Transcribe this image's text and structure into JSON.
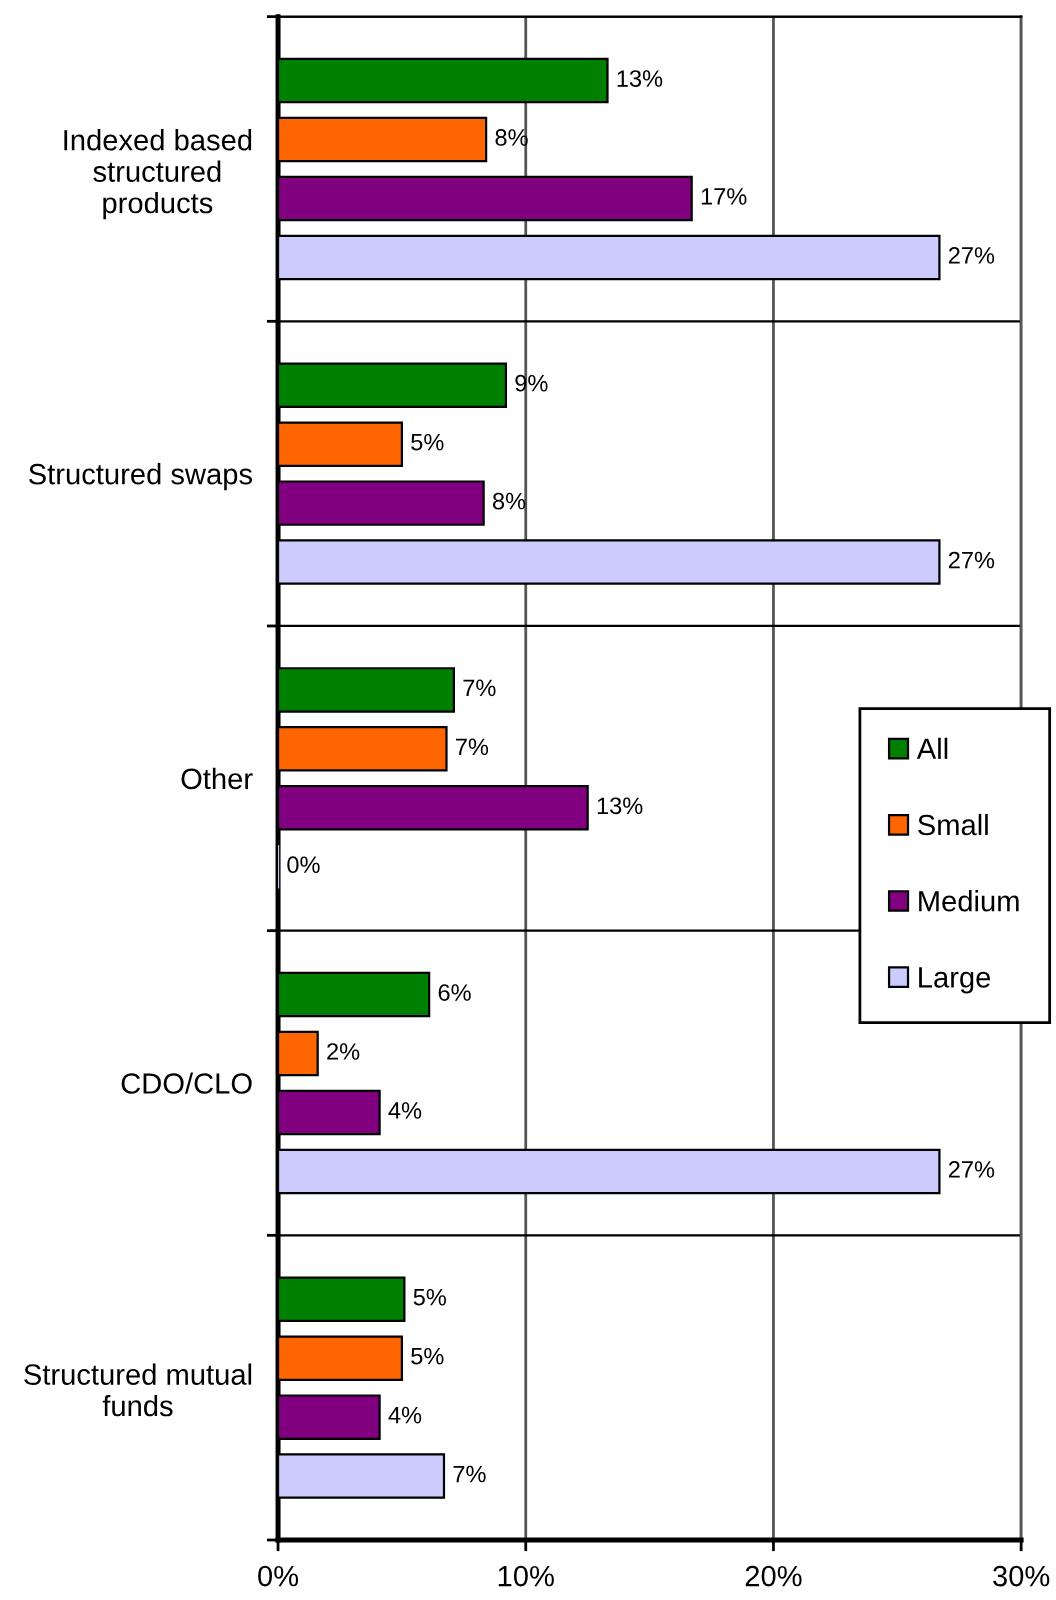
{
  "chart_data": {
    "type": "bar",
    "orientation": "horizontal",
    "categories": [
      "Indexed based\nstructured\nproducts",
      "Structured swaps",
      "Other",
      "CDO/CLO",
      "Structured mutual\nfunds"
    ],
    "series": [
      {
        "name": "All",
        "color": "#008000",
        "values": [
          13.3,
          9.2,
          7.1,
          6.1,
          5.1
        ],
        "value_labels": [
          "13%",
          "9%",
          "7%",
          "6%",
          "5%"
        ]
      },
      {
        "name": "Small",
        "color": "#ff6600",
        "values": [
          8.4,
          5.0,
          6.8,
          1.6,
          5.0
        ],
        "value_labels": [
          "8%",
          "5%",
          "7%",
          "2%",
          "5%"
        ]
      },
      {
        "name": "Medium",
        "color": "#800080",
        "values": [
          16.7,
          8.3,
          12.5,
          4.1,
          4.1
        ],
        "value_labels": [
          "17%",
          "8%",
          "13%",
          "4%",
          "4%"
        ]
      },
      {
        "name": "Large",
        "color": "#ccccff",
        "values": [
          26.7,
          26.7,
          0,
          26.7,
          6.7
        ],
        "value_labels": [
          "27%",
          "27%",
          "0%",
          "27%",
          "7%"
        ]
      }
    ],
    "xlim": [
      0,
      30
    ],
    "xticks": [
      {
        "value": 0,
        "label": "0%"
      },
      {
        "value": 10,
        "label": "10%"
      },
      {
        "value": 20,
        "label": "20%"
      },
      {
        "value": 30,
        "label": "30%"
      }
    ],
    "grid": true,
    "legend": "right"
  }
}
